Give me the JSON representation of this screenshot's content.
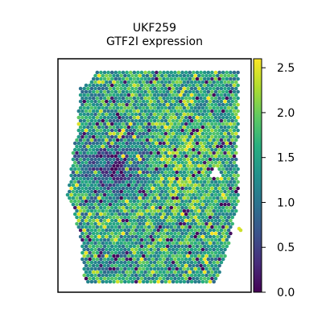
{
  "chart_data": {
    "type": "scatter",
    "subtype": "spatial-hexbin",
    "title": "UKF259",
    "subtitle": "GTF2I expression",
    "colormap": "viridis",
    "color_range": [
      0.0,
      2.6
    ],
    "colorbar": {
      "ticks": [
        0.0,
        0.5,
        1.0,
        1.5,
        2.0,
        2.5
      ],
      "tick_labels": [
        "0.0",
        "0.5",
        "1.0",
        "1.5",
        "2.0",
        "2.5"
      ],
      "placement": "right"
    },
    "grid": false,
    "axes_frame": true,
    "regions": [
      {
        "description": "low-expression cluster",
        "location": "upper-left/center",
        "approx_value": 0.6
      },
      {
        "description": "high-expression band",
        "location": "center-right",
        "approx_value": 2.0
      },
      {
        "description": "gap (no spots)",
        "location": "right-middle"
      }
    ],
    "value_distribution": {
      "mean": 1.45,
      "min": 0.0,
      "max": 2.6
    }
  },
  "colors": {
    "frame": "#000000",
    "background": "#ffffff"
  }
}
